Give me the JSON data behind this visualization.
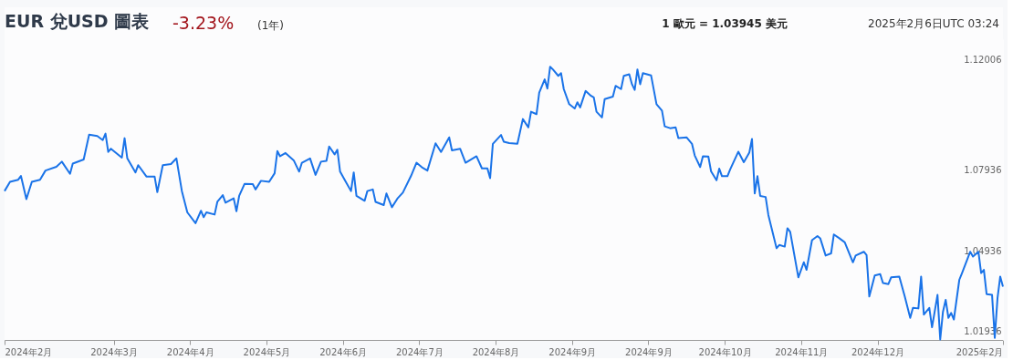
{
  "chart_data": {
    "type": "line",
    "title": "EUR 兌USD 圖表",
    "annotations": [
      "-3.23%",
      "(1年)",
      "1 歐元 = 1.03945 美元",
      "2025年2月6日UTC 03:24"
    ],
    "x": [
      "2024-02-06",
      "2024-02-08",
      "2024-02-11",
      "2024-02-12",
      "2024-02-14",
      "2024-02-16",
      "2024-02-19",
      "2024-02-21",
      "2024-02-25",
      "2024-02-27",
      "2024-03-01",
      "2024-03-02",
      "2024-03-06",
      "2024-03-08",
      "2024-03-11",
      "2024-03-13",
      "2024-03-14",
      "2024-03-15",
      "2024-03-16",
      "2024-03-20",
      "2024-03-21",
      "2024-03-22",
      "2024-03-25",
      "2024-03-26",
      "2024-03-29",
      "2024-04-01",
      "2024-04-02",
      "2024-04-04",
      "2024-04-07",
      "2024-04-09",
      "2024-04-11",
      "2024-04-13",
      "2024-04-16",
      "2024-04-18",
      "2024-04-19",
      "2024-04-20",
      "2024-04-23",
      "2024-04-24",
      "2024-04-26",
      "2024-04-27",
      "2024-04-30",
      "2024-05-01",
      "2024-05-02",
      "2024-05-04",
      "2024-05-07",
      "2024-05-08",
      "2024-05-10",
      "2024-05-13",
      "2024-05-15",
      "2024-05-16",
      "2024-05-17",
      "2024-05-19",
      "2024-05-22",
      "2024-05-24",
      "2024-05-25",
      "2024-05-28",
      "2024-05-30",
      "2024-06-01",
      "2024-06-03",
      "2024-06-04",
      "2024-06-06",
      "2024-06-07",
      "2024-06-08",
      "2024-06-10",
      "2024-06-12",
      "2024-06-13",
      "2024-06-14",
      "2024-06-17",
      "2024-06-18",
      "2024-06-20",
      "2024-06-21",
      "2024-06-24",
      "2024-06-25",
      "2024-06-27",
      "2024-06-29",
      "2024-07-01",
      "2024-07-04",
      "2024-07-06",
      "2024-07-08",
      "2024-07-10",
      "2024-07-13",
      "2024-07-15",
      "2024-07-18",
      "2024-07-19",
      "2024-07-22",
      "2024-07-24",
      "2024-07-28",
      "2024-07-30",
      "2024-08-01",
      "2024-08-02",
      "2024-08-03",
      "2024-08-06",
      "2024-08-07",
      "2024-08-09",
      "2024-08-12",
      "2024-08-14",
      "2024-08-16",
      "2024-08-17",
      "2024-08-19",
      "2024-08-20",
      "2024-08-22",
      "2024-08-23",
      "2024-08-24",
      "2024-08-25",
      "2024-08-27",
      "2024-08-28",
      "2024-08-29",
      "2024-08-31",
      "2024-09-02",
      "2024-09-03",
      "2024-09-04",
      "2024-09-06",
      "2024-09-08",
      "2024-09-09",
      "2024-09-10",
      "2024-09-12",
      "2024-09-13",
      "2024-09-16",
      "2024-09-17",
      "2024-09-19",
      "2024-09-20",
      "2024-09-22",
      "2024-09-23",
      "2024-09-24",
      "2024-09-25",
      "2024-09-26",
      "2024-09-27",
      "2024-09-30",
      "2024-10-02",
      "2024-10-04",
      "2024-10-05",
      "2024-10-07",
      "2024-10-09",
      "2024-10-10",
      "2024-10-13",
      "2024-10-15",
      "2024-10-16",
      "2024-10-18",
      "2024-10-19",
      "2024-10-21",
      "2024-10-22",
      "2024-10-24",
      "2024-10-25",
      "2024-10-26",
      "2024-10-28",
      "2024-10-29",
      "2024-11-01",
      "2024-11-03",
      "2024-11-05",
      "2024-11-06",
      "2024-11-07",
      "2024-11-08",
      "2024-11-09",
      "2024-11-11",
      "2024-11-12",
      "2024-11-15",
      "2024-11-16",
      "2024-11-18",
      "2024-11-19",
      "2024-11-20",
      "2024-11-23",
      "2024-11-25",
      "2024-11-26",
      "2024-11-28",
      "2024-11-30",
      "2024-12-01",
      "2024-12-03",
      "2024-12-05",
      "2024-12-06",
      "2024-12-08",
      "2024-12-10",
      "2024-12-13",
      "2024-12-14",
      "2024-12-17",
      "2024-12-18",
      "2024-12-19",
      "2024-12-21",
      "2024-12-23",
      "2024-12-24",
      "2024-12-26",
      "2024-12-27",
      "2024-12-30",
      "2025-01-01",
      "2025-01-03",
      "2025-01-04",
      "2025-01-06",
      "2025-01-07",
      "2025-01-08",
      "2025-01-10",
      "2025-01-11",
      "2025-01-13",
      "2025-01-14",
      "2025-01-15",
      "2025-01-16",
      "2025-01-17",
      "2025-01-18",
      "2025-01-19",
      "2025-01-21",
      "2025-01-22",
      "2025-01-25",
      "2025-01-26",
      "2025-01-28",
      "2025-01-29",
      "2025-01-30",
      "2025-01-31",
      "2025-02-02",
      "2025-02-03",
      "2025-02-04",
      "2025-02-05",
      "2025-02-06"
    ],
    "series": [
      {
        "color": "#1a73e8",
        "values": [
          1.0715,
          1.0749,
          1.0757,
          1.0771,
          1.0685,
          1.0749,
          1.0757,
          1.0791,
          1.0805,
          1.0824,
          1.0779,
          1.0817,
          1.0832,
          1.0924,
          1.0919,
          1.0904,
          1.0928,
          1.086,
          1.0872,
          1.0839,
          1.0911,
          1.0836,
          1.0784,
          1.0811,
          1.0769,
          1.0769,
          1.0711,
          1.0811,
          1.0815,
          1.0836,
          1.0715,
          1.0636,
          1.0596,
          1.0642,
          1.0618,
          1.0636,
          1.0628,
          1.0675,
          1.07,
          1.0672,
          1.0688,
          1.064,
          1.0697,
          1.0742,
          1.0741,
          1.0721,
          1.0753,
          1.0749,
          1.0781,
          1.0863,
          1.0844,
          1.0856,
          1.0829,
          1.0787,
          1.082,
          1.0836,
          1.0775,
          1.0824,
          1.0827,
          1.088,
          1.0851,
          1.0868,
          1.0787,
          1.0751,
          1.0715,
          1.0784,
          1.0697,
          1.0679,
          1.0715,
          1.0721,
          1.0675,
          1.0663,
          1.0706,
          1.0655,
          1.0687,
          1.0709,
          1.0771,
          1.082,
          1.0803,
          1.0791,
          1.0892,
          1.086,
          1.0914,
          1.0866,
          1.0872,
          1.082,
          1.0844,
          1.0799,
          1.0799,
          1.0763,
          1.089,
          1.0923,
          1.0898,
          1.0893,
          1.089,
          1.0982,
          1.0951,
          1.1009,
          1.1,
          1.108,
          1.1129,
          1.1095,
          1.1176,
          1.1166,
          1.1142,
          1.1152,
          1.1093,
          1.1037,
          1.1021,
          1.1044,
          1.1025,
          1.1086,
          1.1068,
          1.1062,
          1.1009,
          1.0988,
          1.1056,
          1.1065,
          1.1105,
          1.1093,
          1.1142,
          1.1148,
          1.1111,
          1.109,
          1.1166,
          1.1111,
          1.1152,
          1.1144,
          1.1037,
          1.1013,
          1.0955,
          1.0948,
          1.0951,
          1.0911,
          1.0914,
          1.089,
          1.0847,
          1.0804,
          1.0844,
          1.0843,
          1.0788,
          1.0755,
          1.0798,
          1.077,
          1.077,
          1.0795,
          1.0861,
          1.0822,
          1.0857,
          1.0908,
          1.0706,
          1.077,
          1.0697,
          1.0693,
          1.0626,
          1.0503,
          1.0515,
          1.0509,
          1.0577,
          1.0564,
          1.0395,
          1.0451,
          1.0423,
          1.0533,
          1.0548,
          1.054,
          1.0476,
          1.0484,
          1.0554,
          1.054,
          1.0525,
          1.0451,
          1.0476,
          1.049,
          1.0478,
          1.0324,
          1.0402,
          1.0407,
          1.0374,
          1.037,
          1.0395,
          1.0398,
          1.0324,
          1.0245,
          1.0282,
          1.028,
          1.0398,
          1.0257,
          1.0282,
          1.021,
          1.033,
          1.0165,
          1.0267,
          1.0312,
          1.0245,
          1.0263,
          1.0239,
          1.0386,
          1.0411,
          1.049,
          1.0472,
          1.049,
          1.0411,
          1.0423,
          1.0333,
          1.033,
          1.0171,
          1.0318,
          1.0398,
          1.0361
        ]
      }
    ],
    "xlim": [
      "2024-02-06",
      "2025-02-06"
    ],
    "xticks": [
      {
        "value": "2024-02-06",
        "label": "2024年2月"
      },
      {
        "value": "2024-03-17",
        "label": "2024年3月"
      },
      {
        "value": "2024-04-14",
        "label": "2024年4月"
      },
      {
        "value": "2024-05-12",
        "label": "2024年5月"
      },
      {
        "value": "2024-06-09",
        "label": "2024年6月"
      },
      {
        "value": "2024-07-07",
        "label": "2024年7月"
      },
      {
        "value": "2024-08-04",
        "label": "2024年8月"
      },
      {
        "value": "2024-09-01",
        "label": "2024年9月"
      },
      {
        "value": "2024-09-29",
        "label": "2024年9月"
      },
      {
        "value": "2024-10-27",
        "label": "2024年10月"
      },
      {
        "value": "2024-11-24",
        "label": "2024年11月"
      },
      {
        "value": "2024-12-22",
        "label": "2024年12月"
      },
      {
        "value": "2025-02-06",
        "label": "2025年2月"
      }
    ],
    "ylim": [
      1.0163,
      1.1278
    ],
    "yticks": [
      {
        "value": 1.01936,
        "label": "1.01936"
      },
      {
        "value": 1.04936,
        "label": "1.04936"
      },
      {
        "value": 1.07936,
        "label": "1.07936"
      },
      {
        "value": 1.12006,
        "label": "1.12006"
      }
    ],
    "grid": false,
    "marker": "none",
    "line_style": "solid"
  }
}
